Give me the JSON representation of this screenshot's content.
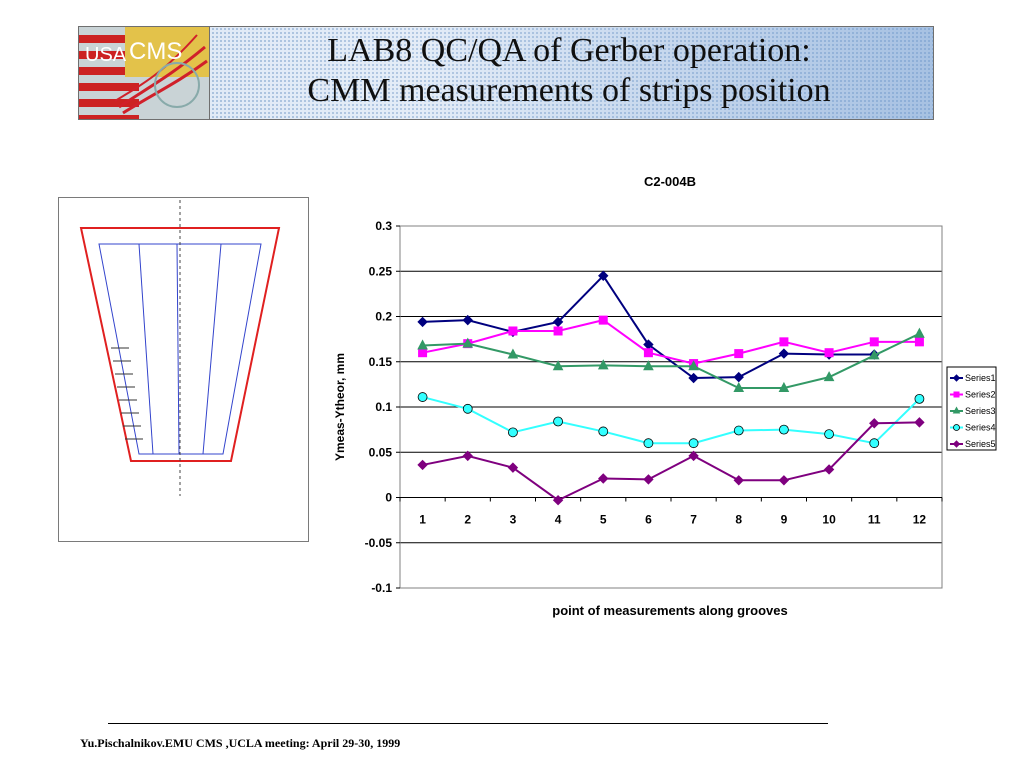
{
  "slide": {
    "title_line1": "LAB8 QC/QA of Gerber operation:",
    "title_line2": "CMM measurements of strips position",
    "logo_text": "CMS",
    "footer": "Yu.Pischalnikov.EMU CMS ,UCLA meeting:  April 29-30, 1999"
  },
  "chart_data": {
    "type": "line",
    "title": "C2-004B",
    "xlabel": "point of measurements along grooves",
    "ylabel": "Ymeas-Ytheor, mm",
    "categories": [
      "1",
      "2",
      "3",
      "4",
      "5",
      "6",
      "7",
      "8",
      "9",
      "10",
      "11",
      "12"
    ],
    "ylim": [
      -0.1,
      0.3
    ],
    "yticks": [
      "0.3",
      "0.25",
      "0.2",
      "0.15",
      "0.1",
      "0.05",
      "0",
      "-0.05",
      "-0.1"
    ],
    "grid": true,
    "legend": "right",
    "series": [
      {
        "name": "Series1",
        "color": "#00007f",
        "marker": "diamond",
        "values": [
          0.194,
          0.196,
          0.183,
          0.194,
          0.245,
          0.169,
          0.132,
          0.133,
          0.159,
          0.158,
          0.158,
          null
        ]
      },
      {
        "name": "Series2",
        "color": "#ff00ff",
        "marker": "square",
        "values": [
          0.16,
          0.17,
          0.184,
          0.184,
          0.196,
          0.16,
          0.148,
          0.159,
          0.172,
          0.16,
          0.172,
          0.172
        ]
      },
      {
        "name": "Series3",
        "color": "#339966",
        "marker": "triangle",
        "values": [
          0.168,
          0.17,
          0.158,
          0.145,
          0.146,
          0.145,
          0.145,
          0.121,
          0.121,
          0.133,
          0.157,
          0.181
        ]
      },
      {
        "name": "Series4",
        "color": "#33ffff",
        "marker": "circle",
        "values": [
          0.111,
          0.098,
          0.072,
          0.084,
          0.073,
          0.06,
          0.06,
          0.074,
          0.075,
          0.07,
          0.06,
          0.109
        ]
      },
      {
        "name": "Series5",
        "color": "#7f007f",
        "marker": "diamond",
        "values": [
          0.036,
          0.046,
          0.033,
          -0.003,
          0.021,
          0.02,
          0.046,
          0.019,
          0.019,
          0.031,
          0.082,
          0.083
        ]
      }
    ]
  }
}
